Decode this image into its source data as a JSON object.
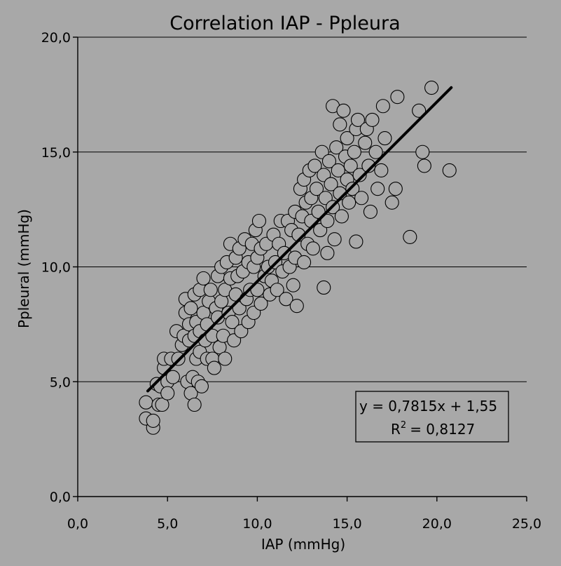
{
  "chart_data": {
    "type": "scatter",
    "title": "Correlation IAP - Ppleura",
    "xlabel": "IAP (mmHg)",
    "ylabel": "Ppleural (mmHg)",
    "xlim": [
      0,
      25
    ],
    "ylim": [
      0,
      20
    ],
    "x_ticks": [
      0,
      5,
      10,
      15,
      20,
      25
    ],
    "y_ticks": [
      0,
      5,
      10,
      15,
      20
    ],
    "x_tick_labels": [
      "0,0",
      "5,0",
      "10,0",
      "15,0",
      "20,0",
      "25,0"
    ],
    "y_tick_labels": [
      "0,0",
      "5,0",
      "10,0",
      "15,0",
      "20,0"
    ],
    "grid": "horizontal",
    "trendline": {
      "slope": 0.7815,
      "intercept": 1.55,
      "x_range": [
        3.9,
        20.8
      ]
    },
    "annotation": {
      "equation": "y = 0,7815x + 1,55",
      "r_squared_label": "R",
      "r_squared_sup": "2",
      "r_squared_value": "= 0,8127",
      "position": "lower-right"
    },
    "series": [
      {
        "marker": "open-circle",
        "points": [
          [
            3.8,
            4.1
          ],
          [
            3.8,
            3.4
          ],
          [
            4.2,
            3.0
          ],
          [
            4.2,
            3.3
          ],
          [
            4.4,
            4.9
          ],
          [
            4.5,
            4.0
          ],
          [
            4.6,
            4.8
          ],
          [
            4.7,
            4.0
          ],
          [
            4.8,
            5.6
          ],
          [
            4.8,
            6.0
          ],
          [
            5.0,
            5.0
          ],
          [
            5.0,
            4.5
          ],
          [
            5.2,
            6.0
          ],
          [
            5.3,
            5.2
          ],
          [
            5.5,
            7.2
          ],
          [
            5.6,
            6.0
          ],
          [
            5.8,
            6.6
          ],
          [
            5.9,
            7.0
          ],
          [
            6.0,
            8.0
          ],
          [
            6.0,
            8.6
          ],
          [
            6.1,
            5.0
          ],
          [
            6.2,
            7.5
          ],
          [
            6.2,
            6.8
          ],
          [
            6.3,
            4.5
          ],
          [
            6.3,
            8.2
          ],
          [
            6.4,
            5.2
          ],
          [
            6.5,
            4.0
          ],
          [
            6.5,
            7.0
          ],
          [
            6.5,
            8.8
          ],
          [
            6.6,
            6.0
          ],
          [
            6.6,
            7.6
          ],
          [
            6.7,
            5.0
          ],
          [
            6.8,
            9.0
          ],
          [
            6.8,
            7.2
          ],
          [
            6.8,
            6.3
          ],
          [
            6.9,
            4.8
          ],
          [
            7.0,
            9.5
          ],
          [
            7.0,
            8.0
          ],
          [
            7.1,
            6.8
          ],
          [
            7.2,
            7.5
          ],
          [
            7.2,
            6.0
          ],
          [
            7.3,
            8.5
          ],
          [
            7.4,
            9.0
          ],
          [
            7.5,
            7.0
          ],
          [
            7.5,
            6.0
          ],
          [
            7.6,
            5.6
          ],
          [
            7.7,
            8.2
          ],
          [
            7.8,
            9.6
          ],
          [
            7.8,
            7.8
          ],
          [
            7.9,
            6.5
          ],
          [
            8.0,
            10.0
          ],
          [
            8.0,
            8.5
          ],
          [
            8.1,
            7.0
          ],
          [
            8.2,
            9.0
          ],
          [
            8.2,
            6.0
          ],
          [
            8.3,
            10.2
          ],
          [
            8.4,
            8.0
          ],
          [
            8.5,
            11.0
          ],
          [
            8.5,
            9.5
          ],
          [
            8.6,
            7.6
          ],
          [
            8.7,
            6.8
          ],
          [
            8.8,
            10.4
          ],
          [
            8.8,
            8.8
          ],
          [
            8.9,
            9.6
          ],
          [
            9.0,
            10.8
          ],
          [
            9.0,
            8.2
          ],
          [
            9.1,
            7.2
          ],
          [
            9.2,
            9.8
          ],
          [
            9.3,
            11.2
          ],
          [
            9.4,
            8.6
          ],
          [
            9.5,
            10.2
          ],
          [
            9.5,
            7.6
          ],
          [
            9.6,
            9.0
          ],
          [
            9.7,
            11.0
          ],
          [
            9.8,
            10.0
          ],
          [
            9.8,
            8.0
          ],
          [
            9.9,
            11.6
          ],
          [
            10.0,
            10.4
          ],
          [
            10.0,
            9.0
          ],
          [
            10.1,
            12.0
          ],
          [
            10.2,
            8.4
          ],
          [
            10.2,
            10.8
          ],
          [
            10.4,
            9.6
          ],
          [
            10.5,
            11.0
          ],
          [
            10.6,
            10.0
          ],
          [
            10.7,
            8.8
          ],
          [
            10.8,
            9.4
          ],
          [
            10.9,
            11.4
          ],
          [
            11.0,
            10.2
          ],
          [
            11.1,
            9.0
          ],
          [
            11.2,
            11.0
          ],
          [
            11.3,
            12.0
          ],
          [
            11.4,
            9.8
          ],
          [
            11.5,
            10.6
          ],
          [
            11.6,
            8.6
          ],
          [
            11.7,
            12.0
          ],
          [
            11.8,
            10.0
          ],
          [
            11.9,
            11.6
          ],
          [
            12.0,
            9.2
          ],
          [
            12.1,
            12.4
          ],
          [
            12.1,
            10.4
          ],
          [
            12.2,
            8.3
          ],
          [
            12.3,
            11.4
          ],
          [
            12.4,
            13.4
          ],
          [
            12.5,
            12.2
          ],
          [
            12.6,
            10.2
          ],
          [
            12.6,
            13.8
          ],
          [
            12.7,
            12.8
          ],
          [
            12.8,
            11.0
          ],
          [
            12.9,
            14.2
          ],
          [
            13.0,
            13.0
          ],
          [
            13.0,
            12.0
          ],
          [
            13.1,
            10.8
          ],
          [
            13.2,
            14.4
          ],
          [
            13.3,
            13.4
          ],
          [
            13.4,
            12.4
          ],
          [
            13.5,
            11.6
          ],
          [
            13.6,
            15.0
          ],
          [
            13.7,
            14.0
          ],
          [
            13.7,
            9.1
          ],
          [
            13.8,
            13.0
          ],
          [
            13.9,
            12.0
          ],
          [
            13.9,
            10.6
          ],
          [
            14.0,
            14.6
          ],
          [
            14.1,
            13.6
          ],
          [
            14.2,
            12.6
          ],
          [
            14.2,
            17.0
          ],
          [
            14.3,
            11.2
          ],
          [
            14.4,
            15.2
          ],
          [
            14.5,
            14.2
          ],
          [
            14.6,
            16.2
          ],
          [
            14.6,
            13.2
          ],
          [
            14.7,
            12.2
          ],
          [
            14.8,
            16.8
          ],
          [
            14.9,
            14.8
          ],
          [
            15.0,
            13.8
          ],
          [
            15.0,
            15.6
          ],
          [
            15.1,
            12.8
          ],
          [
            15.2,
            14.4
          ],
          [
            15.3,
            13.4
          ],
          [
            15.4,
            15.0
          ],
          [
            15.5,
            16.0
          ],
          [
            15.5,
            11.1
          ],
          [
            15.6,
            16.4
          ],
          [
            15.7,
            14.0
          ],
          [
            15.8,
            13.0
          ],
          [
            16.0,
            15.4
          ],
          [
            16.1,
            16.0
          ],
          [
            16.2,
            14.4
          ],
          [
            16.3,
            12.4
          ],
          [
            16.4,
            16.4
          ],
          [
            16.6,
            15.0
          ],
          [
            16.7,
            13.4
          ],
          [
            16.9,
            14.2
          ],
          [
            17.0,
            17.0
          ],
          [
            17.1,
            15.6
          ],
          [
            17.5,
            12.8
          ],
          [
            17.7,
            13.4
          ],
          [
            17.8,
            17.4
          ],
          [
            18.5,
            11.3
          ],
          [
            19.0,
            16.8
          ],
          [
            19.2,
            15.0
          ],
          [
            19.3,
            14.4
          ],
          [
            19.7,
            17.8
          ],
          [
            20.7,
            14.2
          ]
        ]
      }
    ]
  }
}
